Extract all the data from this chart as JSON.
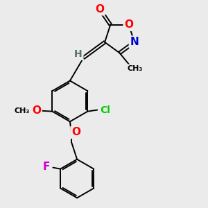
{
  "background_color": "#ebebeb",
  "fig_size": [
    3.0,
    3.0
  ],
  "dpi": 100,
  "atom_colors": {
    "O": "#ff0000",
    "N": "#0000cd",
    "Cl": "#00cc00",
    "F": "#cc00cc",
    "H": "#507070",
    "C": "#000000"
  },
  "bond_color": "#000000",
  "bond_width": 1.4,
  "font_size_atom": 10,
  "font_size_small": 8
}
